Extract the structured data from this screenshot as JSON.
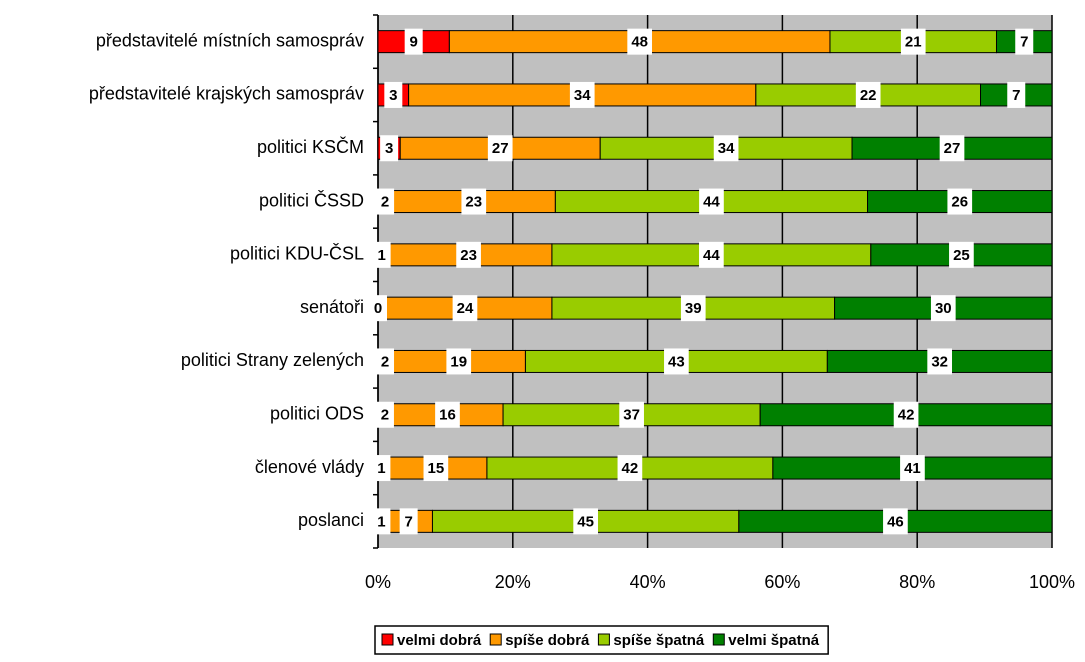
{
  "chart_data": {
    "type": "bar",
    "orientation": "horizontal",
    "stacking": "percent",
    "categories": [
      "představitelé místních samospráv",
      "představitelé krajských samospráv",
      "politici KSČM",
      "politici ČSSD",
      "politici KDU-ČSL",
      "senátoři",
      "politici Strany zelených",
      "politici ODS",
      "členové vlády",
      "poslanci"
    ],
    "series": [
      {
        "name": "velmi dobrá",
        "color": "#ff0000",
        "values": [
          9,
          3,
          3,
          2,
          1,
          0,
          2,
          2,
          1,
          1
        ]
      },
      {
        "name": "spíše dobrá",
        "color": "#ff9900",
        "values": [
          48,
          34,
          27,
          23,
          23,
          24,
          19,
          16,
          15,
          7
        ]
      },
      {
        "name": "spíše špatná",
        "color": "#99cc00",
        "values": [
          21,
          22,
          34,
          44,
          44,
          39,
          43,
          37,
          42,
          45
        ]
      },
      {
        "name": "velmi špatná",
        "color": "#008000",
        "values": [
          7,
          7,
          27,
          26,
          25,
          30,
          32,
          42,
          41,
          46
        ]
      }
    ],
    "xlim": [
      0,
      100
    ],
    "xticks": [
      {
        "value": 0,
        "label": "0%"
      },
      {
        "value": 20,
        "label": "20%"
      },
      {
        "value": 40,
        "label": "40%"
      },
      {
        "value": 60,
        "label": "60%"
      },
      {
        "value": 80,
        "label": "80%"
      },
      {
        "value": 100,
        "label": "100%"
      }
    ],
    "grid": true,
    "legend": "bottom"
  }
}
